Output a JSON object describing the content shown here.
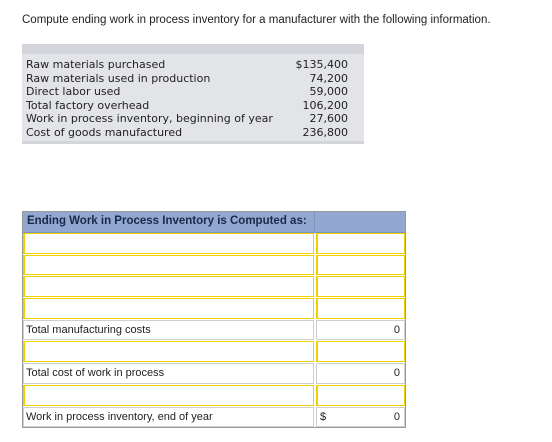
{
  "question": "Compute ending work in process inventory for a manufacturer with the following information.",
  "given": [
    {
      "label": "Raw materials purchased",
      "value": "$135,400"
    },
    {
      "label": "Raw materials used in production",
      "value": "74,200"
    },
    {
      "label": "Direct labor used",
      "value": "59,000"
    },
    {
      "label": "Total factory overhead",
      "value": "106,200"
    },
    {
      "label": "Work in process inventory, beginning of year",
      "value": "27,600"
    },
    {
      "label": "Cost of goods manufactured",
      "value": "236,800"
    }
  ],
  "work_table": {
    "title": "Ending Work in Process Inventory is Computed as:",
    "rows": [
      {
        "label": "",
        "value": ""
      },
      {
        "label": "",
        "value": ""
      },
      {
        "label": "",
        "value": ""
      },
      {
        "label": "",
        "value": ""
      },
      {
        "label": "Total manufacturing costs",
        "value": "0"
      },
      {
        "label": "",
        "value": ""
      },
      {
        "label": "Total cost of work in process",
        "value": "0"
      },
      {
        "label": "",
        "value": ""
      },
      {
        "label": "Work in process inventory, end of year",
        "currency": "$",
        "value": "0"
      }
    ]
  }
}
